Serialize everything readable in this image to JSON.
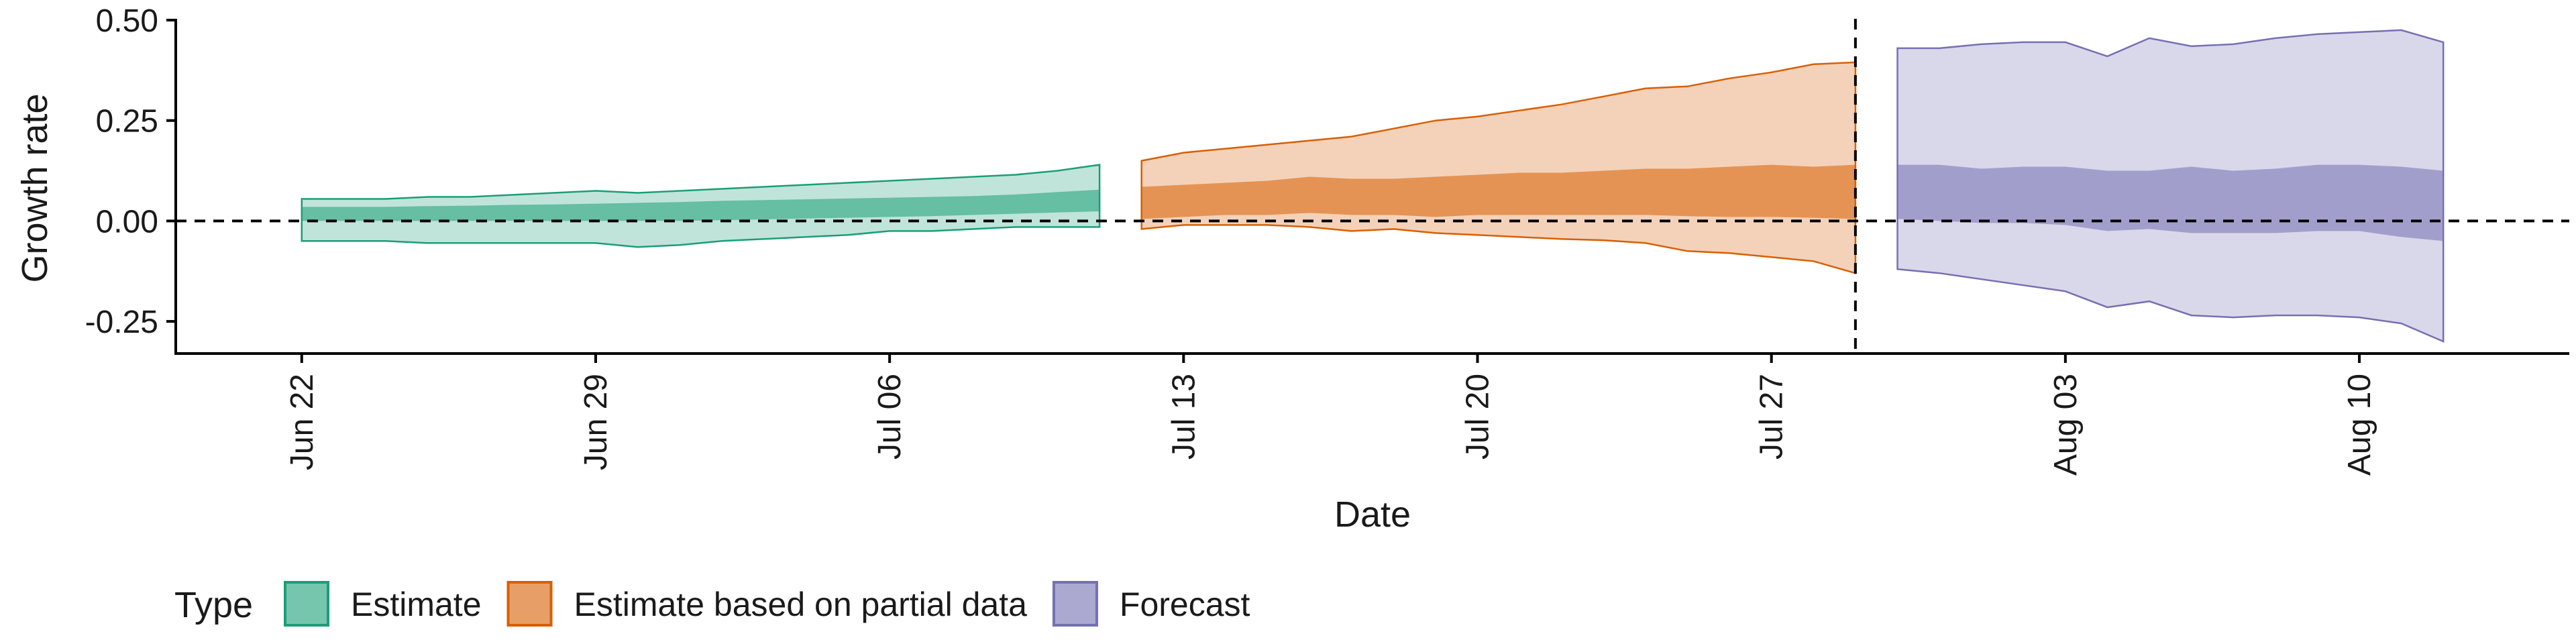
{
  "chart_data": {
    "type": "area",
    "xlabel": "Date",
    "ylabel": "Growth rate",
    "ylim": [
      -0.33,
      0.52
    ],
    "xlim": [
      "2020-06-19",
      "2020-08-15"
    ],
    "y_ticks": [
      {
        "value": -0.25,
        "label": "-0.25"
      },
      {
        "value": 0,
        "label": "0.00"
      },
      {
        "value": 0.25,
        "label": "0.25"
      },
      {
        "value": 0.5,
        "label": "0.50"
      }
    ],
    "x_ticks": [
      {
        "date": "2020-06-22",
        "label": "Jun 22"
      },
      {
        "date": "2020-06-29",
        "label": "Jun 29"
      },
      {
        "date": "2020-07-06",
        "label": "Jul 06"
      },
      {
        "date": "2020-07-13",
        "label": "Jul 13"
      },
      {
        "date": "2020-07-20",
        "label": "Jul 20"
      },
      {
        "date": "2020-07-27",
        "label": "Jul 27"
      },
      {
        "date": "2020-08-03",
        "label": "Aug 03"
      },
      {
        "date": "2020-08-10",
        "label": "Aug 10"
      }
    ],
    "hline": 0,
    "vline": "2020-07-29",
    "grid": false,
    "legend": {
      "position": "bottom",
      "title": "Type",
      "entries": [
        {
          "label": "Estimate",
          "color": "#1b9e77"
        },
        {
          "label": "Estimate based on partial data",
          "color": "#d95f02"
        },
        {
          "label": "Forecast",
          "color": "#7570b3"
        }
      ]
    },
    "series": [
      {
        "name": "Estimate",
        "color": "#1b9e77",
        "x": [
          "2020-06-22",
          "2020-06-23",
          "2020-06-24",
          "2020-06-25",
          "2020-06-26",
          "2020-06-27",
          "2020-06-28",
          "2020-06-29",
          "2020-06-30",
          "2020-07-01",
          "2020-07-02",
          "2020-07-03",
          "2020-07-04",
          "2020-07-05",
          "2020-07-06",
          "2020-07-07",
          "2020-07-08",
          "2020-07-09",
          "2020-07-10",
          "2020-07-11"
        ],
        "outer_upper": [
          0.055,
          0.055,
          0.055,
          0.06,
          0.06,
          0.065,
          0.07,
          0.075,
          0.07,
          0.075,
          0.08,
          0.085,
          0.09,
          0.095,
          0.1,
          0.105,
          0.11,
          0.115,
          0.125,
          0.14
        ],
        "outer_lower": [
          -0.05,
          -0.05,
          -0.05,
          -0.055,
          -0.055,
          -0.055,
          -0.055,
          -0.055,
          -0.065,
          -0.06,
          -0.05,
          -0.045,
          -0.04,
          -0.035,
          -0.025,
          -0.025,
          -0.02,
          -0.015,
          -0.015,
          -0.015
        ],
        "inner_upper": [
          0.035,
          0.035,
          0.035,
          0.037,
          0.038,
          0.04,
          0.041,
          0.043,
          0.045,
          0.047,
          0.05,
          0.052,
          0.054,
          0.056,
          0.058,
          0.06,
          0.062,
          0.066,
          0.072,
          0.078
        ],
        "inner_lower": [
          0,
          0,
          0,
          0,
          0,
          0,
          0,
          0,
          0,
          0,
          0.002,
          0.004,
          0.006,
          0.008,
          0.01,
          0.012,
          0.015,
          0.018,
          0.021,
          0.024
        ]
      },
      {
        "name": "Estimate based on partial data",
        "color": "#d95f02",
        "x": [
          "2020-07-12",
          "2020-07-13",
          "2020-07-14",
          "2020-07-15",
          "2020-07-16",
          "2020-07-17",
          "2020-07-18",
          "2020-07-19",
          "2020-07-20",
          "2020-07-21",
          "2020-07-22",
          "2020-07-23",
          "2020-07-24",
          "2020-07-25",
          "2020-07-26",
          "2020-07-27",
          "2020-07-28",
          "2020-07-29"
        ],
        "outer_upper": [
          0.15,
          0.17,
          0.18,
          0.19,
          0.2,
          0.21,
          0.23,
          0.25,
          0.26,
          0.275,
          0.29,
          0.31,
          0.33,
          0.335,
          0.355,
          0.37,
          0.39,
          0.395
        ],
        "outer_lower": [
          -0.02,
          -0.01,
          -0.01,
          -0.01,
          -0.015,
          -0.025,
          -0.02,
          -0.03,
          -0.035,
          -0.04,
          -0.045,
          -0.048,
          -0.055,
          -0.075,
          -0.08,
          -0.09,
          -0.1,
          -0.13
        ],
        "inner_upper": [
          0.085,
          0.09,
          0.095,
          0.1,
          0.11,
          0.105,
          0.105,
          0.11,
          0.115,
          0.12,
          0.12,
          0.125,
          0.13,
          0.13,
          0.135,
          0.14,
          0.135,
          0.14
        ],
        "inner_lower": [
          0.005,
          0.01,
          0.015,
          0.015,
          0.02,
          0.015,
          0.015,
          0.01,
          0.015,
          0.015,
          0.015,
          0.015,
          0.015,
          0.012,
          0.01,
          0.01,
          0.008,
          0.005
        ]
      },
      {
        "name": "Forecast",
        "color": "#7570b3",
        "x": [
          "2020-07-30",
          "2020-07-31",
          "2020-08-01",
          "2020-08-02",
          "2020-08-03",
          "2020-08-04",
          "2020-08-05",
          "2020-08-06",
          "2020-08-07",
          "2020-08-08",
          "2020-08-09",
          "2020-08-10",
          "2020-08-11",
          "2020-08-12"
        ],
        "outer_upper": [
          0.43,
          0.43,
          0.44,
          0.445,
          0.445,
          0.41,
          0.455,
          0.435,
          0.44,
          0.455,
          0.465,
          0.47,
          0.475,
          0.445
        ],
        "outer_lower": [
          -0.12,
          -0.13,
          -0.145,
          -0.16,
          -0.175,
          -0.215,
          -0.2,
          -0.235,
          -0.24,
          -0.235,
          -0.235,
          -0.24,
          -0.255,
          -0.3
        ],
        "inner_upper": [
          0.14,
          0.14,
          0.13,
          0.135,
          0.135,
          0.125,
          0.125,
          0.135,
          0.125,
          0.13,
          0.14,
          0.14,
          0.135,
          0.125
        ],
        "inner_lower": [
          0.005,
          0,
          -0.005,
          -0.005,
          -0.01,
          -0.025,
          -0.02,
          -0.03,
          -0.03,
          -0.03,
          -0.025,
          -0.025,
          -0.04,
          -0.05
        ]
      }
    ]
  }
}
